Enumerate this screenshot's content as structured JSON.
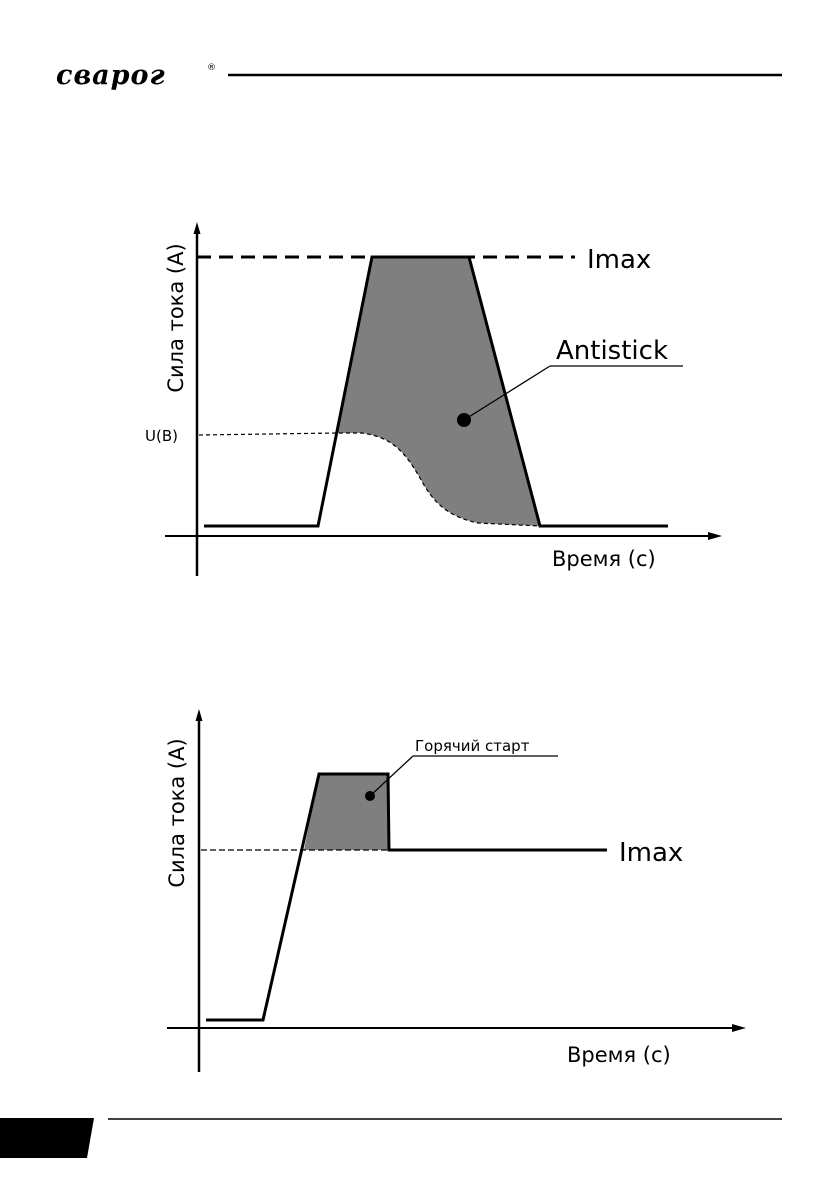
{
  "header": {
    "brand": "сварог",
    "registered_mark": "®"
  },
  "diagram1": {
    "ylabel": "Сила тока (A)",
    "xlabel": "Время (с)",
    "imax_label": "Imax",
    "voltage_label": "U(B)",
    "area_label": "Antistick"
  },
  "diagram2": {
    "ylabel": "Сила тока (A)",
    "xlabel": "Время (с)",
    "imax_label": "Imax",
    "area_label": "Горячий старт"
  },
  "colors": {
    "shade": "#7f7f7f",
    "ink": "#000000",
    "footer_block": "#000000"
  }
}
